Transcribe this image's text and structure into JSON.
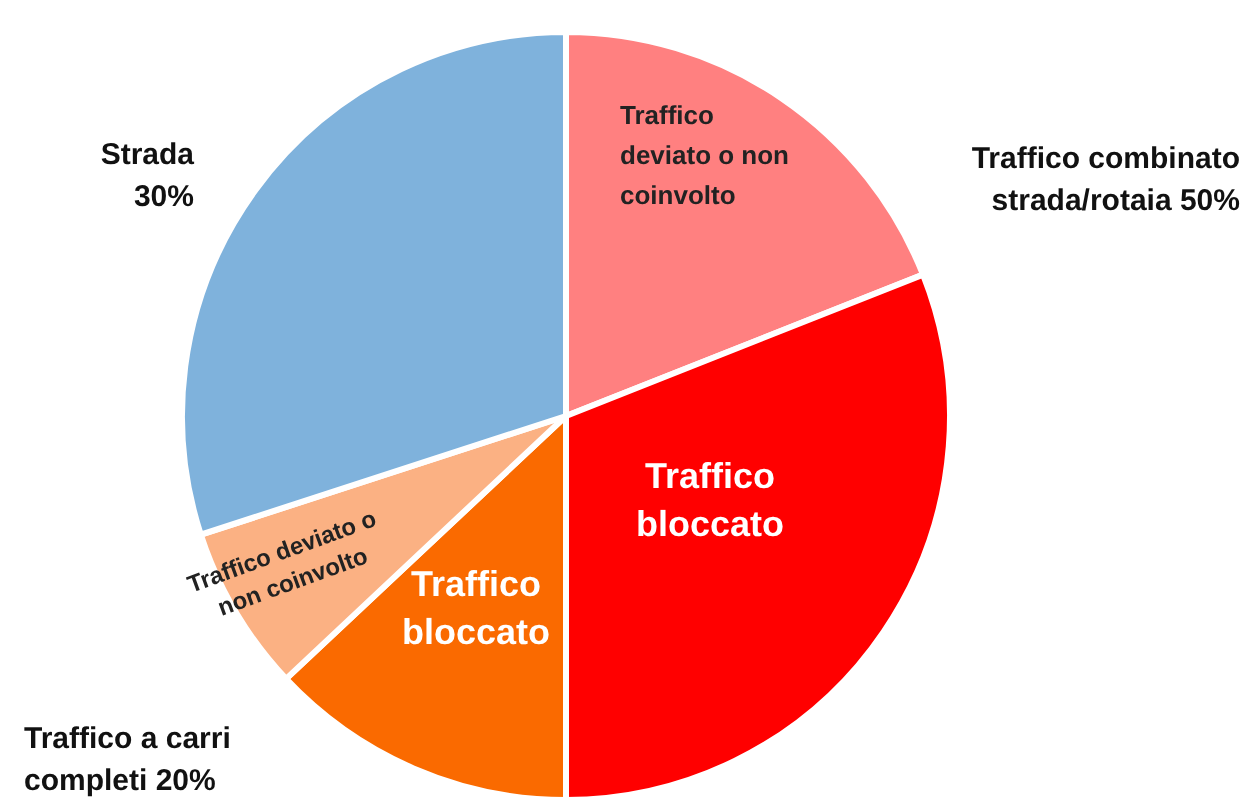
{
  "chart_data": {
    "type": "pie",
    "categories": [
      "Traffico deviato o non coinvolto",
      "Traffico bloccato",
      "Traffico bloccato",
      "Traffico deviato o non coinvolto",
      null
    ],
    "values": [
      19,
      31,
      13,
      7,
      30
    ],
    "colors": [
      "#ff8080",
      "#ff0000",
      "#fa6a00",
      "#fbb183",
      "#7fb2dc"
    ],
    "annotations": [
      "Strada 30%",
      "Traffico combinato strada/rotaia 50%",
      "Traffico a carri completi 20%"
    ]
  }
}
